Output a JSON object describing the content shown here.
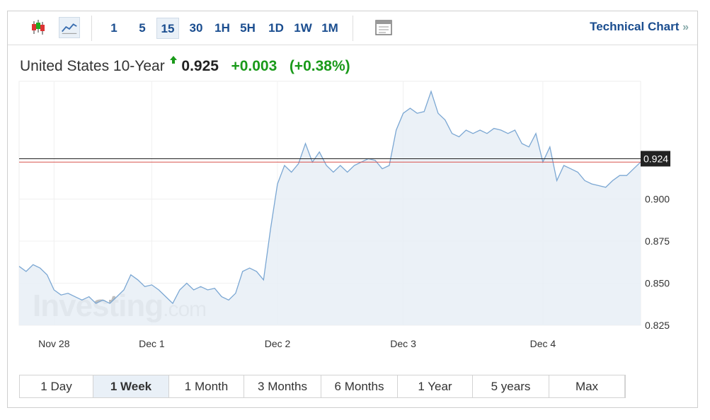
{
  "toolbar": {
    "intervals": [
      "1",
      "5",
      "15",
      "30",
      "1H",
      "5H",
      "1D",
      "1W",
      "1M"
    ],
    "selected_interval": "15",
    "link": "Technical Chart",
    "link_arrow": "»"
  },
  "header": {
    "name": "United States 10-Year",
    "price": "0.925",
    "change": "+0.003",
    "change_pct": "(+0.38%)"
  },
  "watermark": {
    "brand": "Investing",
    "suffix": ".com"
  },
  "chart_data": {
    "type": "area",
    "color": "#7ba7d3",
    "fill": "#e7eef6",
    "categories": [
      null,
      null,
      null,
      null,
      null,
      "Nov 28",
      null,
      null,
      null,
      null,
      null,
      null,
      null,
      null,
      null,
      null,
      null,
      null,
      null,
      "Dec 1",
      null,
      null,
      null,
      null,
      null,
      null,
      null,
      null,
      null,
      null,
      null,
      null,
      null,
      null,
      null,
      null,
      null,
      "Dec 2",
      null,
      null,
      null,
      null,
      null,
      null,
      null,
      null,
      null,
      null,
      null,
      null,
      null,
      null,
      null,
      null,
      null,
      "Dec 3",
      null,
      null,
      null,
      null,
      null,
      null,
      null,
      null,
      null,
      null,
      null,
      null,
      null,
      null,
      null,
      null,
      null,
      null,
      null,
      "Dec 4",
      null,
      null,
      null,
      null,
      null,
      null,
      null,
      null,
      null,
      null,
      null,
      null,
      null,
      null
    ],
    "values": [
      0.86,
      0.857,
      0.861,
      0.859,
      0.855,
      0.846,
      0.843,
      0.844,
      0.842,
      0.84,
      0.842,
      0.838,
      0.84,
      0.838,
      0.842,
      0.846,
      0.855,
      0.852,
      0.848,
      0.849,
      0.846,
      0.842,
      0.838,
      0.846,
      0.85,
      0.846,
      0.848,
      0.846,
      0.847,
      0.842,
      0.84,
      0.844,
      0.857,
      0.859,
      0.857,
      0.852,
      0.882,
      0.909,
      0.92,
      0.916,
      0.921,
      0.933,
      0.922,
      0.928,
      0.92,
      0.916,
      0.92,
      0.916,
      0.92,
      0.922,
      0.924,
      0.923,
      0.918,
      0.92,
      0.941,
      0.951,
      0.954,
      0.951,
      0.952,
      0.964,
      0.951,
      0.947,
      0.939,
      0.937,
      0.941,
      0.939,
      0.941,
      0.939,
      0.942,
      0.941,
      0.939,
      0.941,
      0.933,
      0.931,
      0.939,
      0.922,
      0.931,
      0.911,
      0.92,
      0.918,
      0.916,
      0.911,
      0.909,
      0.908,
      0.907,
      0.911,
      0.914,
      0.914,
      0.918,
      0.922
    ],
    "ylim": [
      0.825,
      0.97
    ],
    "yticks": [
      0.825,
      {
        "value": 0.85,
        "label": "0.850"
      },
      0.875,
      {
        "value": 0.9,
        "label": "0.900"
      }
    ],
    "last_line": {
      "value": 0.924,
      "color": "#222222"
    },
    "reference_line": {
      "value": 0.922,
      "color": "#d9534f"
    },
    "grid": true
  },
  "ranges": [
    "1 Day",
    "1 Week",
    "1 Month",
    "3 Months",
    "6 Months",
    "1 Year",
    "5 years",
    "Max"
  ],
  "selected_range": "1 Week"
}
